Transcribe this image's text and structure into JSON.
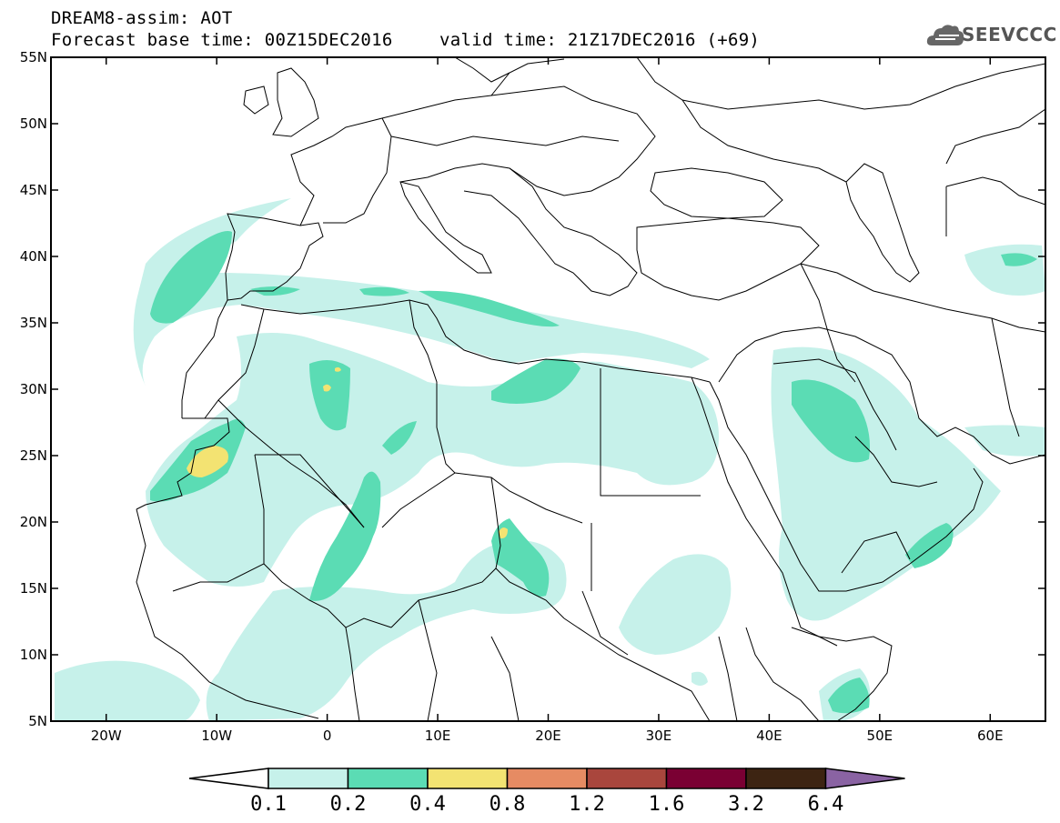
{
  "header": {
    "title": "DREAM8-assim: AOT",
    "base_time": "Forecast base time: 00Z15DEC2016",
    "valid_time": "valid time: 21Z17DEC2016 (+69)"
  },
  "logo": {
    "text": "SEEVCCC",
    "icon": "cloud-icon"
  },
  "map": {
    "lat_range": [
      5,
      55
    ],
    "lon_range": [
      -25,
      65
    ],
    "lat_ticks": [
      {
        "v": 55,
        "t": "55N"
      },
      {
        "v": 50,
        "t": "50N"
      },
      {
        "v": 45,
        "t": "45N"
      },
      {
        "v": 40,
        "t": "40N"
      },
      {
        "v": 35,
        "t": "35N"
      },
      {
        "v": 30,
        "t": "30N"
      },
      {
        "v": 25,
        "t": "25N"
      },
      {
        "v": 20,
        "t": "20N"
      },
      {
        "v": 15,
        "t": "15N"
      },
      {
        "v": 10,
        "t": "10N"
      },
      {
        "v": 5,
        "t": "5N"
      }
    ],
    "lon_ticks": [
      {
        "v": -20,
        "t": "20W"
      },
      {
        "v": -10,
        "t": "10W"
      },
      {
        "v": 0,
        "t": "0"
      },
      {
        "v": 10,
        "t": "10E"
      },
      {
        "v": 20,
        "t": "20E"
      },
      {
        "v": 30,
        "t": "30E"
      },
      {
        "v": 40,
        "t": "40E"
      },
      {
        "v": 50,
        "t": "50E"
      },
      {
        "v": 60,
        "t": "60E"
      }
    ]
  },
  "colorbar": {
    "labels": [
      "0.1",
      "0.2",
      "0.4",
      "0.8",
      "1.2",
      "1.6",
      "3.2",
      "6.4"
    ],
    "colors": [
      "#ffffff",
      "#c6f1ea",
      "#5bdcb4",
      "#f3e372",
      "#e68b63",
      "#a9463d",
      "#7a0033",
      "#3d2412",
      "#8a63a3"
    ]
  }
}
